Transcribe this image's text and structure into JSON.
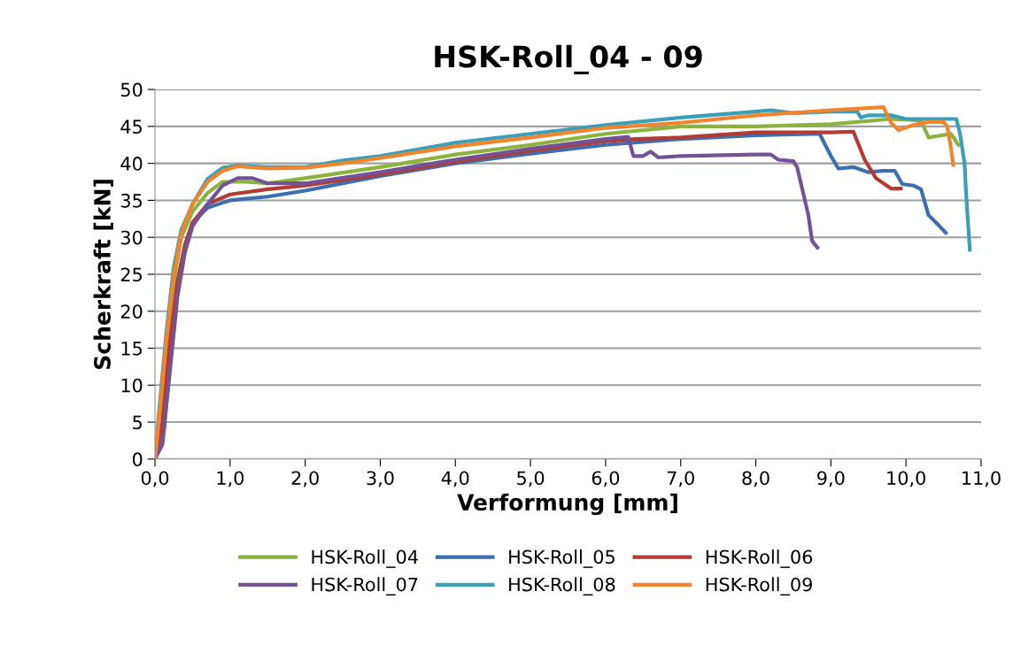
{
  "chart_data": {
    "type": "line",
    "title": "HSK-Roll_04 - 09",
    "xlabel": "Verformung [mm]",
    "ylabel": "Scherkraft [kN]",
    "xlim": [
      0,
      11
    ],
    "ylim": [
      0,
      50
    ],
    "xticks": [
      {
        "value": 0,
        "label": "0,0"
      },
      {
        "value": 1,
        "label": "1,0"
      },
      {
        "value": 2,
        "label": "2,0"
      },
      {
        "value": 3,
        "label": "3,0"
      },
      {
        "value": 4,
        "label": "4,0"
      },
      {
        "value": 5,
        "label": "5,0"
      },
      {
        "value": 6,
        "label": "6,0"
      },
      {
        "value": 7,
        "label": "7,0"
      },
      {
        "value": 8,
        "label": "8,0"
      },
      {
        "value": 9,
        "label": "9,0"
      },
      {
        "value": 10,
        "label": "10,0"
      },
      {
        "value": 11,
        "label": "11,0"
      }
    ],
    "yticks": [
      0,
      5,
      10,
      15,
      20,
      25,
      30,
      35,
      40,
      45,
      50
    ],
    "grid": "y",
    "legend": "bottom",
    "marker": "none",
    "line_style": "solid",
    "series": [
      {
        "name": "HSK-Roll_04",
        "color": "#8cb33f",
        "x": [
          0,
          0.05,
          0.15,
          0.25,
          0.35,
          0.5,
          0.7,
          0.9,
          1.2,
          1.5,
          2.0,
          3.0,
          4.0,
          5.0,
          6.0,
          7.0,
          8.0,
          9.0,
          9.8,
          10.2,
          10.3,
          10.6,
          10.7
        ],
        "values": [
          0,
          4,
          15,
          24,
          30,
          33.5,
          36,
          37.5,
          37.5,
          37.3,
          38,
          39.5,
          41.2,
          42.5,
          44,
          45,
          45,
          45.3,
          46,
          45.8,
          43.5,
          44,
          42.5
        ]
      },
      {
        "name": "HSK-Roll_05",
        "color": "#3c6fb0",
        "x": [
          0,
          0.08,
          0.12,
          0.2,
          0.3,
          0.4,
          0.5,
          0.7,
          1.0,
          1.5,
          2.0,
          3.0,
          4.0,
          5.0,
          6.0,
          7.0,
          8.0,
          8.85,
          9.0,
          9.1,
          9.3,
          9.5,
          9.7,
          9.85,
          9.95,
          10.1,
          10.2,
          10.3,
          10.4,
          10.53
        ],
        "values": [
          0,
          3,
          4,
          15,
          24,
          29,
          32,
          34,
          35,
          35.5,
          36.3,
          38.3,
          40,
          41.3,
          42.5,
          43.3,
          43.8,
          44,
          41,
          39.3,
          39.5,
          38.8,
          39,
          39,
          37.2,
          37,
          36.5,
          33,
          32,
          30.6
        ]
      },
      {
        "name": "HSK-Roll_06",
        "color": "#b23c33",
        "x": [
          0,
          0.1,
          0.2,
          0.3,
          0.4,
          0.5,
          0.7,
          1.0,
          1.5,
          2.0,
          3.0,
          4.0,
          5.0,
          6.0,
          6.4,
          7.0,
          8.0,
          9.0,
          9.3,
          9.35,
          9.45,
          9.6,
          9.8,
          9.93
        ],
        "values": [
          0,
          5,
          16,
          24,
          29,
          32,
          34.5,
          35.8,
          36.5,
          37,
          38.5,
          40.2,
          41.7,
          43,
          43.3,
          43.5,
          44.2,
          44.2,
          44.3,
          43,
          40.5,
          38,
          36.6,
          36.6
        ]
      },
      {
        "name": "HSK-Roll_07",
        "color": "#735396",
        "x": [
          0,
          0.1,
          0.2,
          0.3,
          0.4,
          0.5,
          0.7,
          0.9,
          1.1,
          1.3,
          1.5,
          2.0,
          3.0,
          4.0,
          5.0,
          6.0,
          6.3,
          6.37,
          6.5,
          6.6,
          6.7,
          7.0,
          8.0,
          8.2,
          8.3,
          8.5,
          8.55,
          8.7,
          8.75,
          8.82
        ],
        "values": [
          0,
          2,
          12,
          22,
          28,
          31.5,
          34.5,
          37,
          38,
          38,
          37.3,
          37.3,
          38.8,
          40.5,
          42,
          43.3,
          43.6,
          41,
          41,
          41.6,
          40.8,
          41,
          41.2,
          41.2,
          40.5,
          40.3,
          39.5,
          33,
          29.5,
          28.6
        ]
      },
      {
        "name": "HSK-Roll_08",
        "color": "#3a9fb8",
        "x": [
          0,
          0.05,
          0.15,
          0.25,
          0.35,
          0.5,
          0.7,
          0.9,
          1.1,
          1.5,
          2.0,
          2.5,
          3.0,
          4.0,
          5.0,
          6.0,
          7.0,
          8.0,
          8.2,
          8.5,
          9.0,
          9.35,
          9.4,
          9.5,
          9.8,
          10.0,
          10.5,
          10.67,
          10.72,
          10.78,
          10.8,
          10.85
        ],
        "values": [
          0,
          6,
          17,
          26,
          31,
          34.5,
          37.9,
          39.4,
          39.7,
          39.5,
          39.5,
          40.4,
          41,
          42.8,
          44,
          45.2,
          46.2,
          47,
          47.2,
          46.8,
          47,
          47,
          46.2,
          46.5,
          46.5,
          46,
          46,
          46,
          44,
          40,
          36,
          28.3
        ]
      },
      {
        "name": "HSK-Roll_09",
        "color": "#f0852d",
        "x": [
          0,
          0.05,
          0.15,
          0.25,
          0.35,
          0.5,
          0.7,
          0.9,
          1.1,
          1.5,
          2.0,
          2.5,
          3.0,
          4.0,
          5.0,
          6.0,
          7.0,
          8.0,
          9.0,
          9.7,
          9.8,
          9.9,
          10.1,
          10.3,
          10.5,
          10.55,
          10.6,
          10.63
        ],
        "values": [
          0,
          5,
          16,
          25,
          30.5,
          34.5,
          37.5,
          39,
          39.6,
          39.3,
          39.4,
          40,
          40.7,
          42.3,
          43.5,
          44.8,
          45.5,
          46.5,
          47.2,
          47.6,
          45.5,
          44.5,
          45.2,
          45.6,
          45.6,
          45,
          42,
          39.8
        ]
      }
    ]
  }
}
